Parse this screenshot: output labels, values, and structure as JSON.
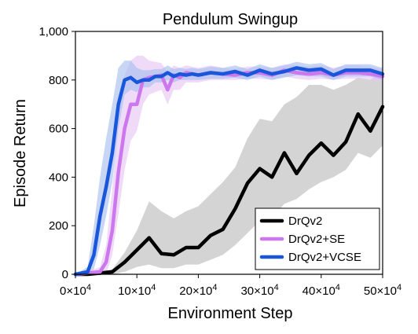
{
  "chart_data": {
    "type": "line",
    "title": "Pendulum Swingup",
    "xlabel": "Environment Step",
    "ylabel": "Episode Return",
    "xlim": [
      0,
      50
    ],
    "ylim": [
      0,
      1000
    ],
    "x_unit_suffix": "×10",
    "x_unit_exp": "4",
    "xticks": [
      0,
      10,
      20,
      30,
      40,
      50
    ],
    "yticks": [
      0,
      200,
      400,
      600,
      800,
      1000
    ],
    "ytick_labels": [
      "0",
      "200",
      "400",
      "600",
      "800",
      "1,000"
    ],
    "legend_position": "lower-right",
    "grid": false,
    "series": [
      {
        "name": "DrQv2",
        "color": "#000000",
        "band_color": "#bdbdbd",
        "x": [
          0,
          2,
          4,
          6,
          8,
          10,
          12,
          14,
          16,
          18,
          20,
          22,
          24,
          26,
          28,
          30,
          32,
          34,
          36,
          38,
          40,
          42,
          44,
          46,
          48,
          50
        ],
        "values": [
          0,
          0,
          5,
          10,
          50,
          100,
          150,
          85,
          80,
          110,
          110,
          160,
          185,
          270,
          375,
          435,
          400,
          500,
          415,
          490,
          540,
          490,
          545,
          660,
          590,
          690
        ],
        "lower": [
          0,
          0,
          0,
          0,
          10,
          30,
          40,
          25,
          25,
          40,
          40,
          60,
          80,
          120,
          170,
          220,
          230,
          290,
          310,
          350,
          380,
          400,
          430,
          500,
          480,
          530
        ],
        "upper": [
          0,
          2,
          10,
          20,
          90,
          180,
          300,
          260,
          230,
          260,
          280,
          330,
          380,
          440,
          560,
          640,
          630,
          700,
          730,
          780,
          780,
          760,
          780,
          810,
          800,
          840
        ]
      },
      {
        "name": "DrQv2+SE",
        "color": "#cc77ee",
        "band_color": "#e6c6f5",
        "x": [
          0,
          2,
          4,
          5,
          6,
          7,
          8,
          9,
          10,
          11,
          12,
          14,
          15,
          16,
          17,
          18,
          20,
          22,
          24,
          26,
          28,
          30,
          32,
          34,
          36,
          38,
          40,
          42,
          44,
          46,
          48,
          50
        ],
        "values": [
          0,
          5,
          10,
          50,
          180,
          420,
          600,
          700,
          700,
          800,
          810,
          820,
          760,
          820,
          810,
          830,
          820,
          830,
          825,
          820,
          830,
          830,
          820,
          840,
          830,
          825,
          830,
          820,
          830,
          830,
          825,
          815
        ],
        "lower": [
          0,
          0,
          0,
          0,
          80,
          250,
          430,
          550,
          590,
          700,
          740,
          760,
          700,
          760,
          760,
          790,
          790,
          800,
          800,
          800,
          805,
          805,
          800,
          815,
          805,
          800,
          805,
          800,
          805,
          805,
          800,
          790
        ],
        "upper": [
          0,
          10,
          30,
          120,
          350,
          650,
          820,
          880,
          900,
          900,
          880,
          870,
          830,
          860,
          850,
          860,
          850,
          860,
          850,
          845,
          855,
          855,
          850,
          865,
          860,
          855,
          860,
          850,
          860,
          860,
          855,
          845
        ]
      },
      {
        "name": "DrQv2+VCSE",
        "color": "#1a56db",
        "band_color": "#a7c0ee",
        "x": [
          0,
          2,
          3,
          4,
          5,
          6,
          7,
          8,
          9,
          10,
          11,
          12,
          13,
          14,
          15,
          16,
          17,
          18,
          19,
          20,
          22,
          24,
          26,
          28,
          30,
          32,
          34,
          36,
          38,
          40,
          42,
          44,
          46,
          48,
          50
        ],
        "values": [
          0,
          10,
          80,
          240,
          360,
          500,
          700,
          800,
          810,
          790,
          800,
          800,
          815,
          815,
          830,
          815,
          825,
          820,
          825,
          820,
          830,
          825,
          835,
          820,
          840,
          825,
          835,
          850,
          840,
          845,
          820,
          840,
          840,
          840,
          825
        ],
        "lower": [
          0,
          0,
          20,
          120,
          240,
          380,
          600,
          740,
          760,
          750,
          770,
          770,
          790,
          790,
          800,
          790,
          800,
          800,
          800,
          800,
          805,
          805,
          810,
          800,
          815,
          800,
          810,
          820,
          815,
          815,
          800,
          815,
          815,
          815,
          800
        ],
        "upper": [
          0,
          30,
          200,
          400,
          560,
          700,
          850,
          880,
          880,
          850,
          840,
          840,
          845,
          845,
          860,
          845,
          850,
          845,
          850,
          845,
          855,
          850,
          860,
          845,
          865,
          850,
          860,
          875,
          865,
          870,
          845,
          865,
          865,
          865,
          850
        ]
      }
    ]
  }
}
